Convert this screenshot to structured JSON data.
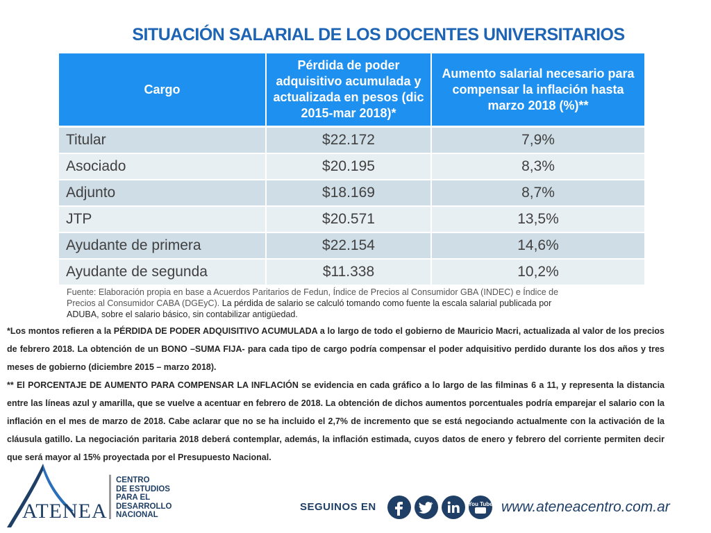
{
  "title": "SITUACIÓN SALARIAL DE LOS DOCENTES UNIVERSITARIOS",
  "table": {
    "headers": [
      "Cargo",
      "Pérdida de poder adquisitivo acumulada y actualizada en pesos (dic 2015-mar 2018)*",
      "Aumento salarial necesario para compensar la inflación hasta marzo 2018 (%)**"
    ],
    "rows": [
      {
        "cargo": "Titular",
        "perdida": "$22.172",
        "aumento": "7,9%"
      },
      {
        "cargo": "Asociado",
        "perdida": "$20.195",
        "aumento": "8,3%"
      },
      {
        "cargo": "Adjunto",
        "perdida": "$18.169",
        "aumento": "8,7%"
      },
      {
        "cargo": "JTP",
        "perdida": "$20.571",
        "aumento": "13,5%"
      },
      {
        "cargo": "Ayudante de primera",
        "perdida": "$22.154",
        "aumento": "14,6%"
      },
      {
        "cargo": "Ayudante de segunda",
        "perdida": "$11.338",
        "aumento": "10,2%"
      }
    ]
  },
  "source": {
    "part1": "Fuente: Elaboración propia en base a Acuerdos Paritarios de Fedun, Índice de Precios al Consumidor GBA (INDEC) e Índice de Precios al Consumidor CABA (DGEyC). ",
    "part2": "La pérdida de salario se calculó tomando como fuente la escala salarial publicada por ADUBA, sobre el salario básico, sin contabilizar antigüedad."
  },
  "notes": {
    "note1": "*Los montos refieren a la PÉRDIDA DE PODER ADQUISITIVO ACUMULADA a lo largo de todo el gobierno de Mauricio Macri, actualizada al valor de los precios de febrero 2018. La obtención de un BONO –SUMA FIJA- para cada tipo de cargo podría compensar el poder adquisitivo perdido durante los dos años y tres meses de gobierno (diciembre 2015 – marzo 2018).",
    "note2": "** El PORCENTAJE DE AUMENTO PARA COMPENSAR LA INFLACIÓN se evidencia en cada gráfico a lo largo de las filminas 6 a 11, y representa la distancia entre las líneas azul y amarilla, que se vuelve a acentuar en febrero de 2018. La obtención de dichos aumentos porcentuales podría emparejar el salario con la inflación en el mes de marzo de 2018. Cabe aclarar que no se ha incluido el 2,7% de incremento que se está negociando actualmente con la activación de la cláusula gatillo. La negociación paritaria 2018 deberá contemplar, además, la inflación estimada, cuyos datos de enero y febrero del corriente permiten decir que será mayor al 15% proyectada por el Presupuesto Nacional."
  },
  "footer": {
    "logo_text": "ATENEA",
    "centro_lines": [
      "CENTRO",
      "DE ESTUDIOS",
      "PARA EL",
      "DESARROLLO",
      "NACIONAL"
    ],
    "seguinos": "SEGUINOS EN",
    "social_icons": [
      "facebook-icon",
      "twitter-icon",
      "linkedin-icon",
      "youtube-icon"
    ],
    "youtube_label": "You Tube",
    "website": "www.ateneacentro.com.ar"
  },
  "colors": {
    "title": "#1e64b4",
    "header_bg": "#1e90ef",
    "row_odd": "#cfdde6",
    "row_even": "#e8eff3",
    "brand_navy": "#1f3f66"
  }
}
